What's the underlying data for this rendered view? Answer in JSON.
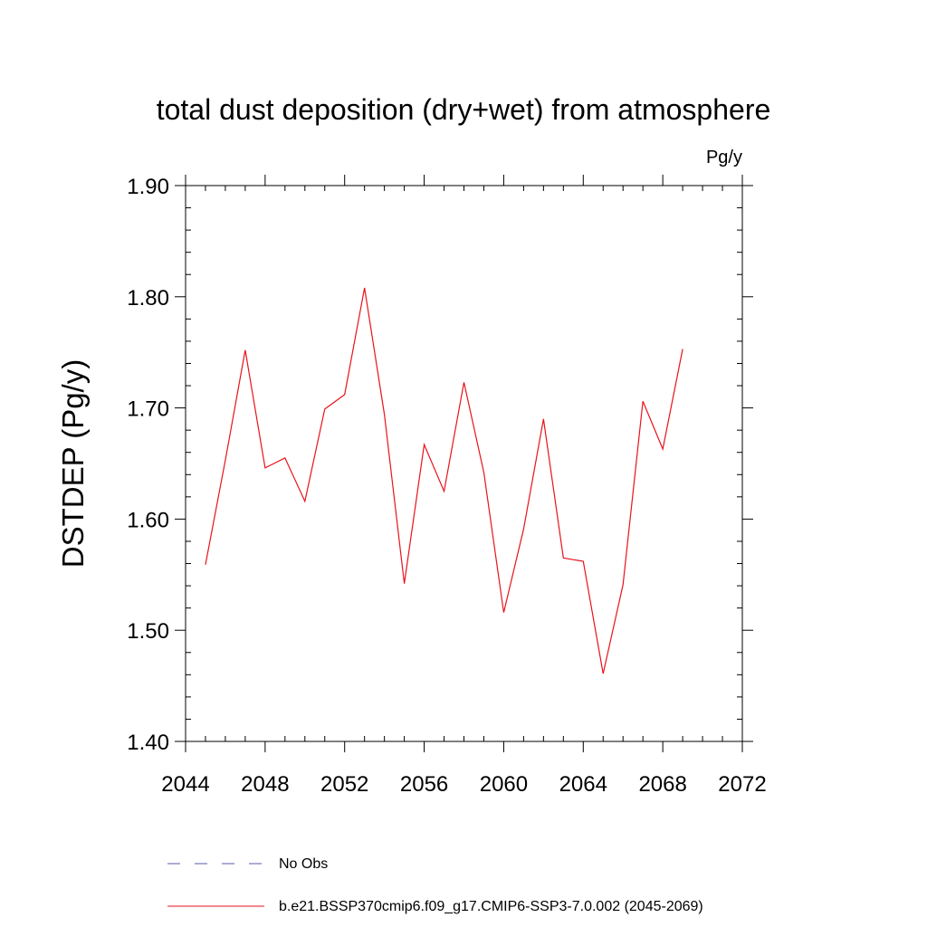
{
  "chart_data": {
    "type": "line",
    "title": "total dust deposition (dry+wet) from atmosphere",
    "units_label": "Pg/y",
    "ylabel": "DSTDEP  (Pg/y)",
    "xlabel": "",
    "xlim": [
      2044,
      2072
    ],
    "ylim": [
      1.4,
      1.9
    ],
    "x_ticks": [
      2044,
      2048,
      2052,
      2056,
      2060,
      2064,
      2068,
      2072
    ],
    "x_tick_labels": [
      "2044",
      "2048",
      "2052",
      "2056",
      "2060",
      "2064",
      "2068",
      "2072"
    ],
    "y_ticks": [
      1.4,
      1.5,
      1.6,
      1.7,
      1.8,
      1.9
    ],
    "y_tick_labels": [
      "1.40",
      "1.50",
      "1.60",
      "1.70",
      "1.80",
      "1.90"
    ],
    "grid": false,
    "legend_placement": "bottom",
    "series": [
      {
        "name": "No Obs",
        "style": "dashed",
        "color": "#5a5aa8",
        "x": [],
        "values": []
      },
      {
        "name": "b.e21.BSSP370cmip6.f09_g17.CMIP6-SSP3-7.0.002 (2045-2069)",
        "style": "solid",
        "color": "#e8131b",
        "x": [
          2045,
          2046,
          2047,
          2048,
          2049,
          2050,
          2051,
          2052,
          2053,
          2054,
          2055,
          2056,
          2057,
          2058,
          2059,
          2060,
          2061,
          2062,
          2063,
          2064,
          2065,
          2066,
          2067,
          2068,
          2069
        ],
        "values": [
          1.559,
          1.653,
          1.752,
          1.646,
          1.655,
          1.616,
          1.699,
          1.712,
          1.808,
          1.694,
          1.542,
          1.667,
          1.625,
          1.723,
          1.642,
          1.516,
          1.591,
          1.69,
          1.565,
          1.562,
          1.461,
          1.541,
          1.706,
          1.663,
          1.753
        ]
      }
    ]
  }
}
